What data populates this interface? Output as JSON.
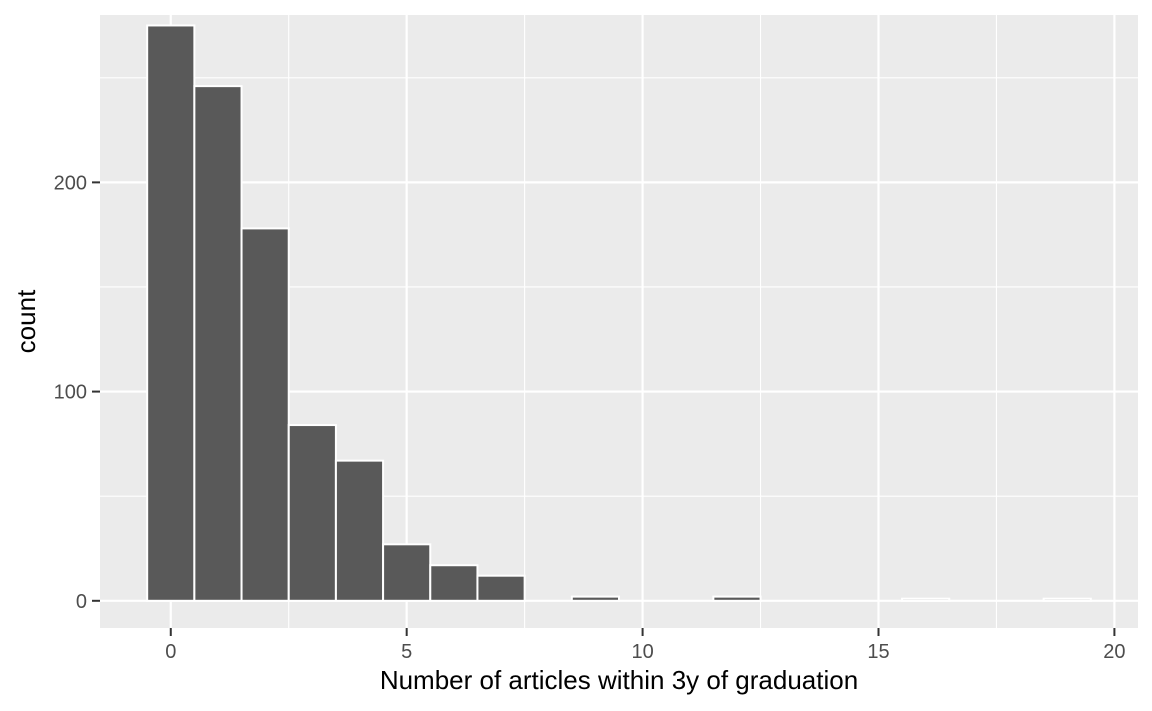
{
  "chart_data": {
    "type": "bar",
    "title": "",
    "xlabel": "Number of articles within 3y of graduation",
    "ylabel": "count",
    "xlim": [
      -1.5,
      20.5
    ],
    "ylim": [
      -13,
      280
    ],
    "x_ticks": [
      0,
      5,
      10,
      15,
      20
    ],
    "x_tick_labels": [
      "0",
      "5",
      "10",
      "15",
      "20"
    ],
    "y_ticks": [
      0,
      100,
      200
    ],
    "y_tick_labels": [
      "0",
      "100",
      "200"
    ],
    "bin_width": 1,
    "x": [
      0,
      1,
      2,
      3,
      4,
      5,
      6,
      7,
      8,
      9,
      10,
      11,
      12,
      13,
      14,
      15,
      16,
      17,
      18,
      19
    ],
    "values": [
      275,
      246,
      178,
      84,
      67,
      27,
      17,
      12,
      0,
      2,
      0,
      0,
      2,
      0,
      0,
      0,
      1,
      0,
      0,
      1
    ],
    "grid": true,
    "colors": {
      "panel_background": "#ebebeb",
      "grid_major": "#ffffff",
      "grid_minor": "#f5f5f5",
      "bar_fill": "#595959",
      "bar_outline": "#ffffff"
    }
  }
}
